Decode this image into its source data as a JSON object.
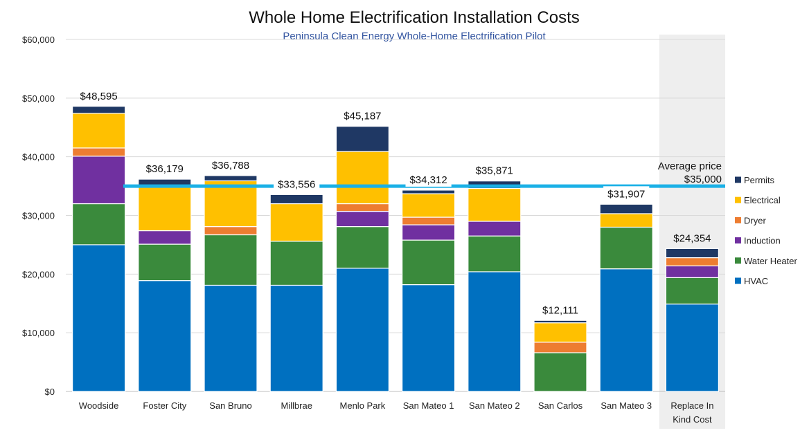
{
  "chart_data": {
    "type": "bar",
    "stacked": true,
    "title": "Whole Home Electrification Installation Costs",
    "subtitle": "Peninsula Clean Energy Whole-Home Electrification Pilot",
    "categories": [
      "Woodside",
      "Foster City",
      "San Bruno",
      "Millbrae",
      "Menlo Park",
      "San Mateo 1",
      "San Mateo 2",
      "San Carlos",
      "San Mateo 3",
      "Replace In Kind Cost"
    ],
    "category_lines": [
      [
        "Woodside"
      ],
      [
        "Foster City"
      ],
      [
        "San Bruno"
      ],
      [
        "Millbrae"
      ],
      [
        "Menlo Park"
      ],
      [
        "San Mateo 1"
      ],
      [
        "San Mateo 2"
      ],
      [
        "San Carlos"
      ],
      [
        "San Mateo 3"
      ],
      [
        "Replace In",
        "Kind Cost"
      ]
    ],
    "series": [
      {
        "name": "HVAC",
        "color": "#0070c0",
        "values": [
          25000,
          18900,
          18100,
          18100,
          21000,
          18200,
          20400,
          0,
          20900,
          14900
        ]
      },
      {
        "name": "Water Heater",
        "color": "#3a8a3c",
        "values": [
          7000,
          6200,
          8600,
          7500,
          7100,
          7600,
          6100,
          6600,
          7100,
          4500
        ]
      },
      {
        "name": "Induction",
        "color": "#7030a0",
        "values": [
          8100,
          2300,
          0,
          0,
          2600,
          2600,
          2500,
          0,
          0,
          2000
        ]
      },
      {
        "name": "Dryer",
        "color": "#ed7d31",
        "values": [
          1400,
          0,
          1400,
          0,
          1300,
          1300,
          0,
          1800,
          0,
          1400
        ]
      },
      {
        "name": "Electrical",
        "color": "#ffc000",
        "values": [
          5900,
          7600,
          7800,
          6400,
          8900,
          4000,
          5600,
          3300,
          2300,
          0
        ]
      },
      {
        "name": "Permits",
        "color": "#1f3864",
        "values": [
          1195,
          1179,
          888,
          1556,
          4287,
          612,
          1271,
          411,
          1607,
          1554
        ]
      }
    ],
    "totals": [
      "$48,595",
      "$36,179",
      "$36,788",
      "$33,556",
      "$45,187",
      "$34,312",
      "$35,871",
      "$12,111",
      "$31,907",
      "$24,354"
    ],
    "legend_order": [
      "Permits",
      "Electrical",
      "Dryer",
      "Induction",
      "Water Heater",
      "HVAC"
    ],
    "yticks": [
      0,
      10000,
      20000,
      30000,
      40000,
      50000,
      60000
    ],
    "ytick_labels": [
      "$0",
      "$10,000",
      "$20,000",
      "$30,000",
      "$40,000",
      "$50,000",
      "$60,000"
    ],
    "ylim": [
      0,
      60000
    ],
    "average": {
      "value": 35000,
      "label_line1": "Average price",
      "label_line2": "$35,000",
      "color": "#1ab0e6"
    },
    "highlight_category": "Replace In Kind Cost",
    "highlight_color": "#eeeeee",
    "subtitle_color": "#3355a0",
    "grid": true,
    "legend_position": "right"
  }
}
